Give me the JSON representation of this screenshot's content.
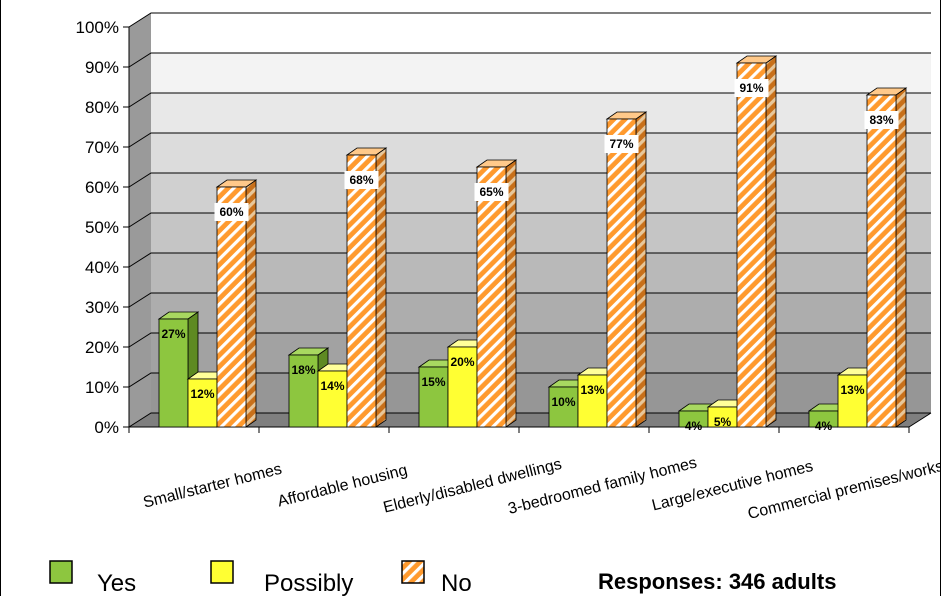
{
  "chart_data": {
    "type": "bar",
    "categories": [
      "Small/starter homes",
      "Affordable housing",
      "Elderly/disabled dwellings",
      "3-bedroomed family homes",
      "Large/executive homes",
      "Commercial premises/workshops"
    ],
    "series": [
      {
        "name": "Yes",
        "values": [
          27,
          18,
          15,
          10,
          4,
          4
        ],
        "color": "#8dc63f"
      },
      {
        "name": "Possibly",
        "values": [
          12,
          14,
          20,
          13,
          5,
          13
        ],
        "color": "#ffff33"
      },
      {
        "name": "No",
        "values": [
          60,
          68,
          65,
          77,
          91,
          83
        ],
        "color": "#ff9a2e"
      }
    ],
    "data_labels": [
      [
        "27%",
        "18%",
        "15%",
        "10%",
        "4%",
        "4%"
      ],
      [
        "12%",
        "14%",
        "20%",
        "13%",
        "5%",
        "13%"
      ],
      [
        "60%",
        "68%",
        "65%",
        "77%",
        "91%",
        "83%"
      ]
    ],
    "y_ticks": [
      "0%",
      "10%",
      "20%",
      "30%",
      "40%",
      "50%",
      "60%",
      "70%",
      "80%",
      "90%",
      "100%"
    ],
    "ylim": [
      0,
      100
    ],
    "grid": true,
    "legend_position": "bottom-left",
    "annotation": "Responses: 346 adults"
  }
}
